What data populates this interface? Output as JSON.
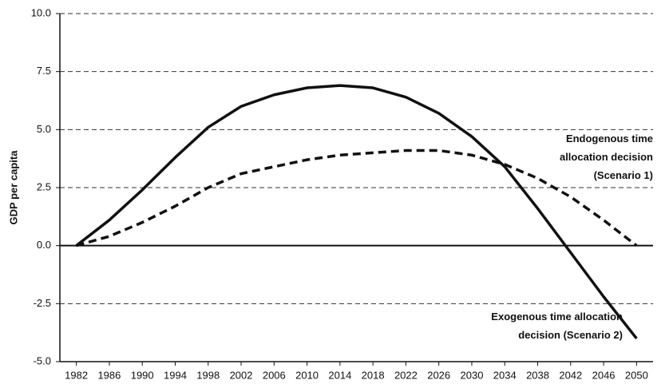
{
  "chart_data": {
    "type": "line",
    "y_label": "GDP per capita",
    "x": [
      1982,
      1986,
      1990,
      1994,
      1998,
      2002,
      2006,
      2010,
      2014,
      2018,
      2022,
      2026,
      2030,
      2034,
      2038,
      2042,
      2046,
      2050
    ],
    "series": [
      {
        "name": "Endogenous time\nallocation decision\n(Scenario 1)",
        "color": "#111111",
        "line_style": "dashed",
        "values": [
          0,
          0.4,
          1.0,
          1.7,
          2.5,
          3.1,
          3.4,
          3.7,
          3.9,
          4.0,
          4.1,
          4.1,
          3.9,
          3.5,
          2.9,
          2.1,
          1.1,
          0
        ]
      },
      {
        "name": "Exogenous time allocation\ndecision (Scenario 2)",
        "color": "#111111",
        "line_style": "solid",
        "values": [
          0,
          1.1,
          2.4,
          3.8,
          5.1,
          6.0,
          6.5,
          6.8,
          6.9,
          6.8,
          6.4,
          5.7,
          4.7,
          3.4,
          1.6,
          -0.3,
          -2.2,
          -4.0
        ]
      }
    ],
    "xlim": [
      1980,
      2052
    ],
    "xticks": [
      1982,
      1986,
      1990,
      1994,
      1998,
      2002,
      2006,
      2010,
      2014,
      2018,
      2022,
      2026,
      2030,
      2034,
      2038,
      2042,
      2046,
      2050
    ],
    "ylim": [
      -5,
      10
    ],
    "yticks": [
      {
        "value": -5,
        "label": "-5.0"
      },
      -2.5,
      {
        "value": 0,
        "label": "0.0"
      },
      2.5,
      {
        "value": 5,
        "label": "5.0"
      },
      7.5,
      {
        "value": 10,
        "label": "10.0"
      }
    ],
    "grid": true
  }
}
